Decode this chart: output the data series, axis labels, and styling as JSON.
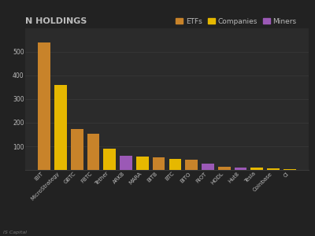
{
  "title": "N HOLDINGS",
  "background_color": "#222222",
  "plot_bg_color": "#2b2b2b",
  "text_color": "#bbbbbb",
  "grid_color": "#3a3a3a",
  "categories": [
    "IBIT",
    "MicroStrategy",
    "GBTC",
    "FBTC",
    "Tether",
    "ARKB",
    "MARA",
    "BITB",
    "BTC",
    "BITO",
    "RIOT",
    "HODL",
    "Hut8",
    "Tesla",
    "Coinbase",
    "Cl"
  ],
  "values": [
    540,
    360,
    175,
    155,
    90,
    60,
    58,
    52,
    48,
    44,
    28,
    14,
    11,
    9,
    7,
    5
  ],
  "colors": [
    "#c8832a",
    "#e6b800",
    "#c8832a",
    "#c8832a",
    "#e6b800",
    "#9b59b6",
    "#e6b800",
    "#c8832a",
    "#e6b800",
    "#c8832a",
    "#9b59b6",
    "#c8832a",
    "#9b59b6",
    "#e6b800",
    "#e6b800",
    "#e6b800"
  ],
  "legend": [
    {
      "label": "ETFs",
      "color": "#c8832a"
    },
    {
      "label": "Companies",
      "color": "#e6b800"
    },
    {
      "label": "Miners",
      "color": "#9b59b6"
    }
  ],
  "source": "IS Capital",
  "ylim": [
    0,
    600
  ]
}
